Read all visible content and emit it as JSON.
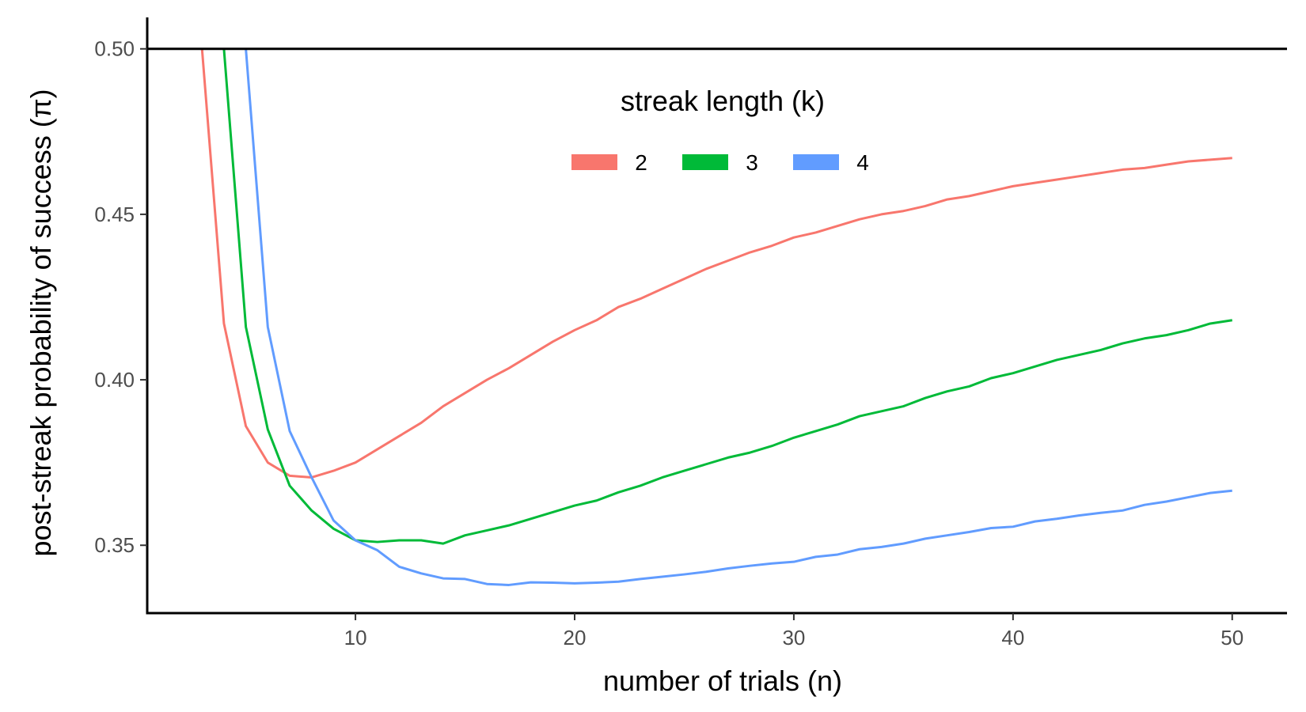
{
  "chart_data": {
    "type": "line",
    "xlabel": "number of trials (n)",
    "ylabel": "post-streak probability of success (π)",
    "xlim": [
      0.5,
      52.5
    ],
    "ylim": [
      0.3295,
      0.5095
    ],
    "x_ticks": [
      10,
      20,
      30,
      40,
      50
    ],
    "x_tick_labels": [
      "10",
      "20",
      "30",
      "40",
      "50"
    ],
    "y_ticks": [
      0.35,
      0.4,
      0.45,
      0.5
    ],
    "y_tick_labels": [
      "0.35",
      "0.40",
      "0.45",
      "0.50"
    ],
    "reference_line": {
      "y": 0.5,
      "color": "#000000"
    },
    "grid": false,
    "legend": {
      "title": "streak length (k)",
      "position": "top-center",
      "entries": [
        "2",
        "3",
        "4"
      ]
    },
    "series": [
      {
        "name": "2",
        "color": "#F8766D",
        "x": [
          3,
          4,
          5,
          6,
          7,
          8,
          9,
          10,
          11,
          12,
          13,
          14,
          15,
          16,
          17,
          18,
          19,
          20,
          21,
          22,
          23,
          24,
          25,
          26,
          27,
          28,
          29,
          30,
          31,
          32,
          33,
          34,
          35,
          36,
          37,
          38,
          39,
          40,
          41,
          42,
          43,
          44,
          45,
          46,
          47,
          48,
          49,
          50
        ],
        "values": [
          0.5,
          0.417,
          0.386,
          0.375,
          0.371,
          0.3705,
          0.3725,
          0.375,
          0.379,
          0.383,
          0.387,
          0.392,
          0.396,
          0.4,
          0.4035,
          0.4075,
          0.4115,
          0.415,
          0.418,
          0.422,
          0.4245,
          0.4275,
          0.4305,
          0.4335,
          0.436,
          0.4385,
          0.4405,
          0.443,
          0.4445,
          0.4465,
          0.4485,
          0.45,
          0.451,
          0.4525,
          0.4545,
          0.4555,
          0.457,
          0.4585,
          0.4595,
          0.4605,
          0.4615,
          0.4625,
          0.4635,
          0.464,
          0.465,
          0.466,
          0.4665,
          0.467
        ]
      },
      {
        "name": "3",
        "color": "#00BA38",
        "x": [
          4,
          5,
          6,
          7,
          8,
          9,
          10,
          11,
          12,
          13,
          14,
          15,
          16,
          17,
          18,
          19,
          20,
          21,
          22,
          23,
          24,
          25,
          26,
          27,
          28,
          29,
          30,
          31,
          32,
          33,
          34,
          35,
          36,
          37,
          38,
          39,
          40,
          41,
          42,
          43,
          44,
          45,
          46,
          47,
          48,
          49,
          50
        ],
        "values": [
          0.5,
          0.416,
          0.385,
          0.368,
          0.3605,
          0.355,
          0.3515,
          0.351,
          0.3515,
          0.3515,
          0.3505,
          0.353,
          0.3545,
          0.356,
          0.358,
          0.36,
          0.362,
          0.3635,
          0.366,
          0.368,
          0.3705,
          0.3725,
          0.3745,
          0.3765,
          0.378,
          0.38,
          0.3825,
          0.3845,
          0.3865,
          0.389,
          0.3905,
          0.392,
          0.3945,
          0.3965,
          0.398,
          0.4005,
          0.402,
          0.404,
          0.406,
          0.4075,
          0.409,
          0.411,
          0.4125,
          0.4135,
          0.415,
          0.417,
          0.418
        ]
      },
      {
        "name": "4",
        "color": "#619CFF",
        "x": [
          5,
          6,
          7,
          8,
          9,
          10,
          11,
          12,
          13,
          14,
          15,
          16,
          17,
          18,
          19,
          20,
          21,
          22,
          23,
          24,
          25,
          26,
          27,
          28,
          29,
          30,
          31,
          32,
          33,
          34,
          35,
          36,
          37,
          38,
          39,
          40,
          41,
          42,
          43,
          44,
          45,
          46,
          47,
          48,
          49,
          50
        ],
        "values": [
          0.5,
          0.416,
          0.3845,
          0.3705,
          0.3575,
          0.3515,
          0.3485,
          0.3435,
          0.3415,
          0.34,
          0.3398,
          0.3383,
          0.338,
          0.3388,
          0.3387,
          0.3385,
          0.3387,
          0.339,
          0.3398,
          0.3405,
          0.3412,
          0.342,
          0.343,
          0.3438,
          0.3445,
          0.345,
          0.3465,
          0.3472,
          0.3488,
          0.3495,
          0.3505,
          0.352,
          0.353,
          0.354,
          0.3552,
          0.3556,
          0.3572,
          0.358,
          0.359,
          0.3598,
          0.3605,
          0.3622,
          0.3632,
          0.3645,
          0.3658,
          0.3665
        ]
      }
    ]
  }
}
